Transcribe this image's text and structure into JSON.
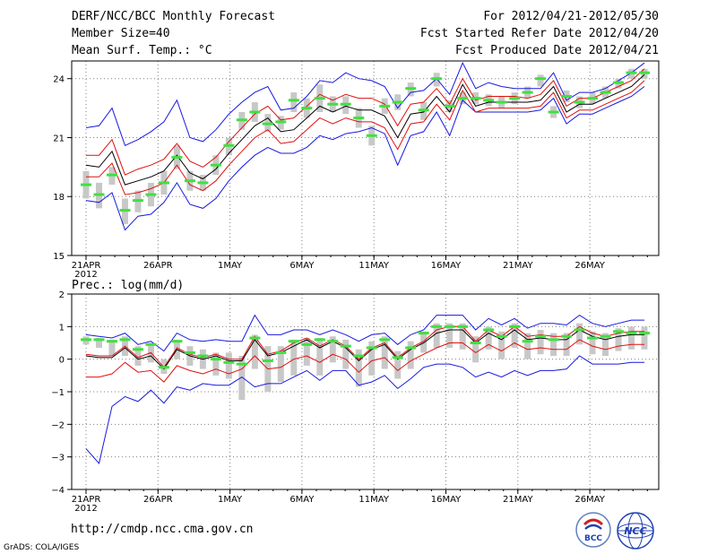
{
  "header": {
    "title": "DERF/NCC/BCC Monthly Forecast",
    "member": "Member Size=40",
    "variable": "Mean Surf. Temp.: °C",
    "period": "For 2012/04/21-2012/05/30",
    "refer": "Fcst Started Refer Date 2012/04/20",
    "produced": "Fcst Produced Date 2012/04/21"
  },
  "footer": {
    "url": "http://cmdp.ncc.cma.gov.cn",
    "credit": "GrADS: COLA/IGES",
    "logo1_text": "BCC",
    "logo2_text": "NCC"
  },
  "colors": {
    "mean": "#000000",
    "spread": "#e01010",
    "envelope": "#1818e0",
    "box": "#c8c8c8",
    "median": "#40e040",
    "grid": "#808080"
  },
  "chart_data": [
    {
      "type": "line",
      "title": "Mean Surf. Temp.: °C",
      "x_tick_labels": [
        "21APR",
        "26APR",
        "1MAY",
        "6MAY",
        "11MAY",
        "16MAY",
        "21MAY",
        "26MAY"
      ],
      "x_year_label": "2012",
      "x_tick_days": [
        1,
        6,
        11,
        16,
        21,
        26,
        31,
        36
      ],
      "days": 40,
      "ylim": [
        15,
        24.9
      ],
      "yticks": [
        15,
        18,
        21,
        24
      ],
      "ytick_labels": [
        "15",
        "18",
        "21",
        "24"
      ],
      "series": [
        {
          "name": "mean",
          "values": [
            19.6,
            19.5,
            20.3,
            18.6,
            18.8,
            19.0,
            19.3,
            20.1,
            19.2,
            18.9,
            19.4,
            20.2,
            20.9,
            21.6,
            22.0,
            21.3,
            21.4,
            22.0,
            22.6,
            22.3,
            22.6,
            22.4,
            22.4,
            22.1,
            21.0,
            22.2,
            22.3,
            23.1,
            22.3,
            23.7,
            22.6,
            22.8,
            22.8,
            22.8,
            22.8,
            22.9,
            23.6,
            22.3,
            22.7,
            22.7,
            23.0,
            23.3,
            23.6,
            24.2
          ]
        },
        {
          "name": "upper",
          "values": [
            20.1,
            20.1,
            20.9,
            19.1,
            19.4,
            19.6,
            19.9,
            20.7,
            19.8,
            19.5,
            20.0,
            20.8,
            21.5,
            22.2,
            22.6,
            21.9,
            22.0,
            22.6,
            23.2,
            22.9,
            23.2,
            23.0,
            23.0,
            22.7,
            21.6,
            22.7,
            22.8,
            23.5,
            22.7,
            24.0,
            22.9,
            23.1,
            23.1,
            23.1,
            23.0,
            23.2,
            23.9,
            22.6,
            23.0,
            23.0,
            23.3,
            23.6,
            23.9,
            24.5
          ]
        },
        {
          "name": "lower",
          "values": [
            19.0,
            19.0,
            19.7,
            18.1,
            18.2,
            18.4,
            18.7,
            19.6,
            18.6,
            18.3,
            18.8,
            19.6,
            20.3,
            21.0,
            21.4,
            20.7,
            20.8,
            21.4,
            22.0,
            21.7,
            22.0,
            21.8,
            21.8,
            21.5,
            20.4,
            21.7,
            21.8,
            22.7,
            21.9,
            23.4,
            22.3,
            22.5,
            22.5,
            22.5,
            22.5,
            22.6,
            23.3,
            22.0,
            22.4,
            22.4,
            22.7,
            23.0,
            23.3,
            23.9
          ]
        },
        {
          "name": "max",
          "values": [
            21.5,
            21.6,
            22.5,
            20.6,
            20.9,
            21.3,
            21.8,
            22.9,
            21.0,
            20.8,
            21.4,
            22.2,
            22.8,
            23.3,
            23.6,
            22.4,
            22.5,
            23.1,
            23.9,
            23.8,
            24.3,
            24.0,
            23.9,
            23.6,
            22.5,
            23.3,
            23.4,
            24.0,
            23.2,
            24.8,
            23.5,
            23.8,
            23.6,
            23.5,
            23.5,
            23.5,
            24.3,
            22.9,
            23.3,
            23.3,
            23.5,
            23.9,
            24.3,
            24.8
          ]
        },
        {
          "name": "min",
          "values": [
            17.8,
            17.7,
            18.2,
            16.3,
            17.0,
            17.1,
            17.7,
            18.7,
            17.6,
            17.4,
            17.9,
            18.8,
            19.5,
            20.1,
            20.5,
            20.2,
            20.2,
            20.5,
            21.1,
            20.9,
            21.2,
            21.3,
            21.5,
            21.2,
            19.6,
            21.1,
            21.3,
            22.3,
            21.1,
            22.9,
            22.3,
            22.3,
            22.3,
            22.3,
            22.3,
            22.4,
            23.0,
            21.7,
            22.2,
            22.2,
            22.5,
            22.8,
            23.1,
            23.6
          ]
        },
        {
          "name": "median",
          "values": [
            18.6,
            18.1,
            19.1,
            17.3,
            17.8,
            18.1,
            18.7,
            20.0,
            18.8,
            18.7,
            19.6,
            20.6,
            21.9,
            22.3,
            21.7,
            21.8,
            22.9,
            22.5,
            23.0,
            22.7,
            22.7,
            22.0,
            21.1,
            22.6,
            22.8,
            23.5,
            22.4,
            24.0,
            22.6,
            23.0,
            23.0,
            22.9,
            22.8,
            23.0,
            23.3,
            24.0,
            22.3,
            23.1,
            22.8,
            23.0,
            23.3,
            23.8,
            24.3,
            24.3
          ]
        },
        {
          "name": "box_top",
          "values": [
            19.3,
            18.7,
            19.5,
            17.9,
            18.3,
            18.7,
            19.3,
            20.6,
            19.3,
            19.1,
            20.1,
            21.0,
            22.3,
            22.8,
            22.2,
            22.1,
            23.3,
            23.0,
            23.7,
            23.1,
            23.1,
            22.5,
            21.6,
            23.0,
            23.2,
            23.8,
            22.8,
            24.3,
            22.9,
            23.3,
            23.3,
            23.2,
            23.1,
            23.3,
            23.6,
            24.2,
            22.6,
            23.4,
            23.1,
            23.3,
            23.6,
            24.0,
            24.5,
            24.5
          ]
        },
        {
          "name": "box_bottom",
          "values": [
            17.9,
            17.4,
            18.6,
            16.6,
            17.2,
            17.5,
            18.1,
            19.4,
            18.3,
            18.3,
            19.1,
            20.1,
            21.4,
            21.8,
            21.3,
            21.4,
            22.3,
            22.0,
            22.3,
            22.3,
            22.2,
            21.5,
            20.6,
            22.2,
            22.4,
            23.1,
            21.9,
            23.6,
            22.3,
            22.7,
            22.7,
            22.6,
            22.5,
            22.7,
            23.0,
            23.6,
            22.0,
            22.8,
            22.5,
            22.7,
            23.0,
            23.5,
            24.0,
            24.0
          ]
        }
      ]
    },
    {
      "type": "line",
      "title": "Prec.: log(mm/d)",
      "x_tick_labels": [
        "21APR",
        "26APR",
        "1MAY",
        "6MAY",
        "11MAY",
        "16MAY",
        "21MAY",
        "26MAY"
      ],
      "x_year_label": "2012",
      "x_tick_days": [
        1,
        6,
        11,
        16,
        21,
        26,
        31,
        36
      ],
      "days": 40,
      "ylim": [
        -4,
        2
      ],
      "yticks": [
        -4,
        -3,
        -2,
        -1,
        0,
        1,
        2
      ],
      "ytick_labels": [
        "−4",
        "−3",
        "−2",
        "−1",
        "0",
        "1",
        "2"
      ],
      "series": [
        {
          "name": "mean",
          "values": [
            0.1,
            0.05,
            0.05,
            0.35,
            0.0,
            0.1,
            -0.3,
            0.3,
            0.1,
            0.0,
            0.1,
            -0.05,
            -0.05,
            0.6,
            0.1,
            0.2,
            0.4,
            0.6,
            0.35,
            0.55,
            0.35,
            -0.05,
            0.3,
            0.45,
            0.0,
            0.3,
            0.5,
            0.8,
            0.9,
            0.9,
            0.5,
            0.8,
            0.6,
            0.9,
            0.6,
            0.65,
            0.6,
            0.6,
            0.9,
            0.7,
            0.6,
            0.7,
            0.75,
            0.75
          ]
        },
        {
          "name": "upper",
          "values": [
            0.15,
            0.1,
            0.1,
            0.4,
            0.05,
            0.2,
            -0.25,
            0.35,
            0.15,
            0.05,
            0.15,
            0.0,
            0.0,
            0.7,
            0.15,
            0.25,
            0.5,
            0.65,
            0.4,
            0.6,
            0.4,
            0.0,
            0.35,
            0.5,
            0.05,
            0.35,
            0.55,
            0.9,
            1.0,
            1.0,
            0.55,
            0.9,
            0.7,
            1.0,
            0.7,
            0.75,
            0.7,
            0.7,
            1.0,
            0.8,
            0.7,
            0.8,
            0.85,
            0.85
          ]
        },
        {
          "name": "lower",
          "values": [
            -0.55,
            -0.55,
            -0.45,
            -0.1,
            -0.4,
            -0.35,
            -0.7,
            -0.2,
            -0.35,
            -0.45,
            -0.3,
            -0.45,
            -0.3,
            0.1,
            -0.3,
            -0.25,
            0.0,
            0.1,
            -0.1,
            0.15,
            0.0,
            -0.4,
            -0.05,
            0.05,
            -0.35,
            -0.05,
            0.15,
            0.35,
            0.5,
            0.5,
            0.2,
            0.45,
            0.25,
            0.5,
            0.3,
            0.35,
            0.3,
            0.3,
            0.6,
            0.4,
            0.3,
            0.4,
            0.45,
            0.45
          ]
        },
        {
          "name": "max",
          "values": [
            0.75,
            0.7,
            0.65,
            0.8,
            0.45,
            0.55,
            0.25,
            0.8,
            0.6,
            0.55,
            0.6,
            0.55,
            0.55,
            1.35,
            0.75,
            0.75,
            0.9,
            0.9,
            0.75,
            0.9,
            0.75,
            0.55,
            0.75,
            0.8,
            0.45,
            0.75,
            0.9,
            1.35,
            1.35,
            1.35,
            0.9,
            1.25,
            1.05,
            1.25,
            0.95,
            1.1,
            1.1,
            1.05,
            1.35,
            1.1,
            1.0,
            1.1,
            1.2,
            1.2
          ]
        },
        {
          "name": "min",
          "values": [
            -2.75,
            -3.2,
            -1.45,
            -1.15,
            -1.3,
            -0.95,
            -1.35,
            -0.85,
            -0.95,
            -0.75,
            -0.8,
            -0.8,
            -0.55,
            -0.85,
            -0.75,
            -0.75,
            -0.55,
            -0.35,
            -0.65,
            -0.35,
            -0.35,
            -0.8,
            -0.7,
            -0.5,
            -0.9,
            -0.6,
            -0.25,
            -0.15,
            -0.15,
            -0.25,
            -0.55,
            -0.4,
            -0.55,
            -0.35,
            -0.5,
            -0.35,
            -0.35,
            -0.3,
            0.1,
            -0.15,
            -0.15,
            -0.15,
            -0.1,
            -0.1
          ]
        },
        {
          "name": "median",
          "values": [
            0.6,
            0.6,
            0.55,
            0.6,
            0.3,
            0.45,
            -0.25,
            0.55,
            0.2,
            0.1,
            0.0,
            -0.1,
            -0.15,
            0.65,
            -0.05,
            0.2,
            0.55,
            0.45,
            0.6,
            0.55,
            0.4,
            0.1,
            0.35,
            0.6,
            0.05,
            0.35,
            0.8,
            1.0,
            1.0,
            1.0,
            0.5,
            0.9,
            0.7,
            1.0,
            0.55,
            0.7,
            0.6,
            0.7,
            0.9,
            0.65,
            0.7,
            0.85,
            0.8,
            0.8
          ]
        },
        {
          "name": "box_top",
          "values": [
            0.7,
            0.65,
            0.6,
            0.7,
            0.4,
            0.5,
            0.0,
            0.6,
            0.4,
            0.3,
            0.2,
            0.2,
            0.1,
            0.75,
            0.4,
            0.4,
            0.6,
            0.65,
            0.65,
            0.7,
            0.6,
            0.3,
            0.55,
            0.7,
            0.25,
            0.55,
            0.85,
            1.1,
            1.1,
            1.1,
            0.7,
            1.0,
            0.85,
            1.1,
            0.8,
            0.9,
            0.8,
            0.8,
            1.1,
            0.85,
            0.8,
            0.95,
            1.0,
            1.0
          ]
        },
        {
          "name": "box_bottom",
          "values": [
            0.45,
            0.35,
            0.1,
            0.1,
            -0.2,
            -0.1,
            -0.45,
            0.0,
            -0.2,
            -0.3,
            -0.5,
            -0.6,
            -1.25,
            -0.3,
            -1.0,
            -0.7,
            -0.5,
            -0.2,
            -0.5,
            -0.1,
            -0.3,
            -0.85,
            -0.5,
            -0.3,
            -0.6,
            -0.3,
            0.2,
            0.35,
            0.35,
            0.3,
            -0.1,
            0.3,
            0.0,
            0.35,
            0.0,
            0.15,
            0.1,
            0.1,
            0.45,
            0.15,
            0.1,
            0.25,
            0.3,
            0.3
          ]
        }
      ]
    }
  ]
}
